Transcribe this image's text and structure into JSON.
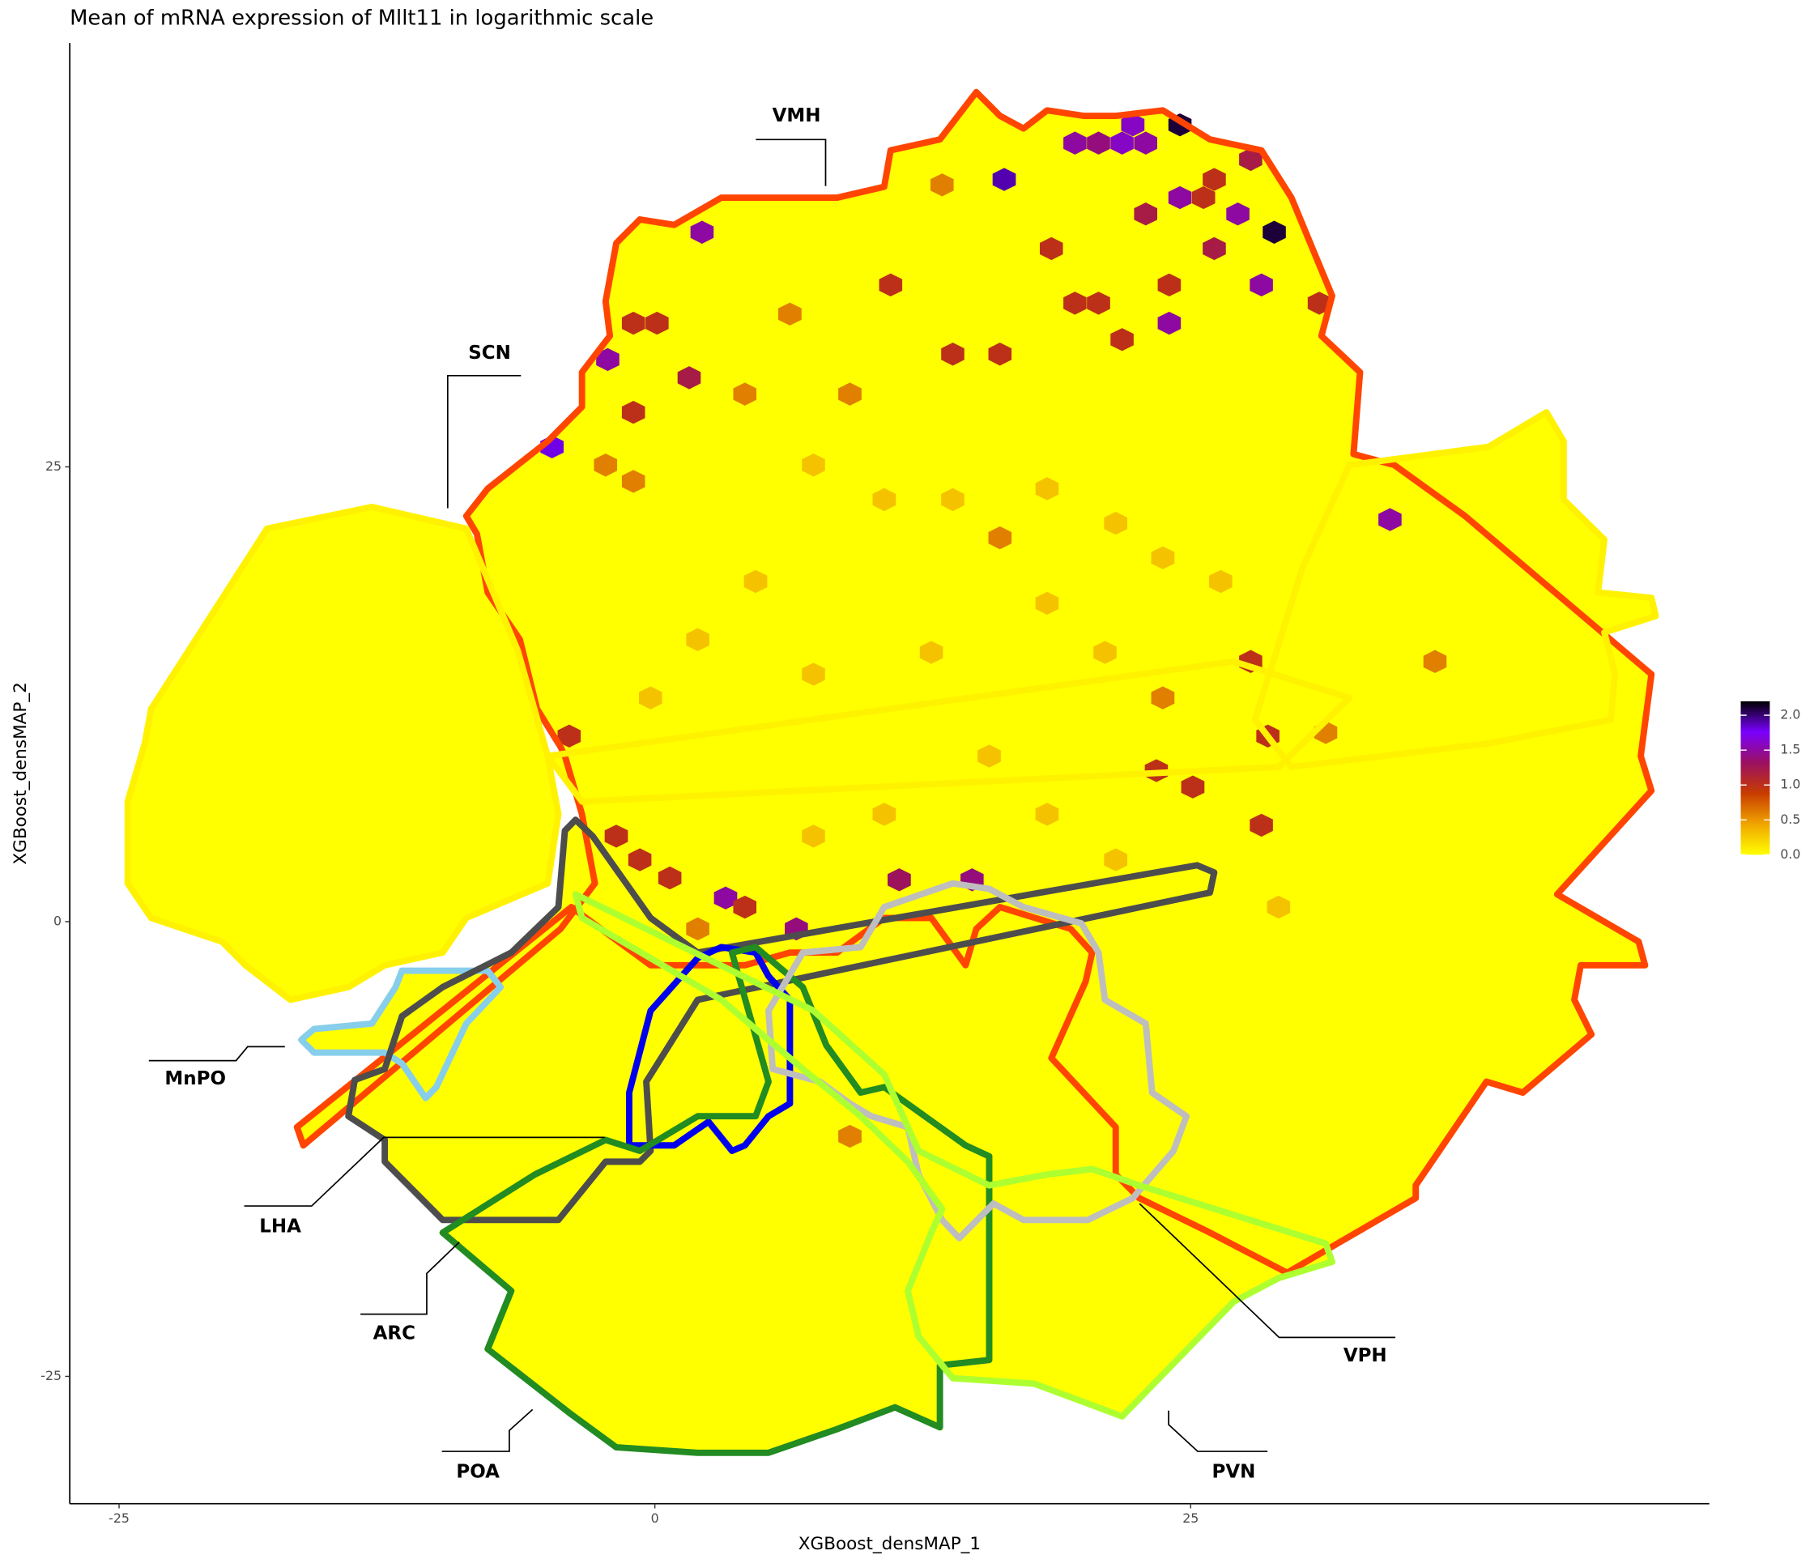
{
  "chart_data": {
    "type": "hexbin",
    "title": "Mean of mRNA expression of Mllt11 in logarithmic scale",
    "x_label": "XGBoost_densMAP_1",
    "y_label": "XGBoost_densMAP_2",
    "xlim": [
      -27.3,
      49.2
    ],
    "ylim": [
      -32.0,
      48.3
    ],
    "xticks": [
      -25,
      0,
      25
    ],
    "yticks": [
      -25,
      0,
      25
    ],
    "colorbar": {
      "lim": [
        0,
        2.2
      ],
      "ticks": [
        {
          "value": 0,
          "label": "0.0"
        },
        {
          "value": 0.5,
          "label": "0.5"
        },
        {
          "value": 1,
          "label": "1.0"
        },
        {
          "value": 1.5,
          "label": "1.5"
        },
        {
          "value": 2,
          "label": "2.0"
        }
      ],
      "colors": [
        "#FFFF00",
        "#F0A500",
        "#C83C00",
        "#9B1060",
        "#7A00FF",
        "#000000"
      ]
    },
    "hexes": {
      "x": [
        24.5,
        28.9,
        16.3,
        -4.8,
        22.3,
        19.6,
        20.7,
        21.8,
        22.9,
        2.2,
        -2.2,
        24.5,
        27.2,
        28.3,
        24.0,
        34.3,
        3.3,
        6.6,
        14.8,
        11.4,
        1.6,
        22.9,
        26.1,
        27.8,
        31.0,
        -1.0,
        0.1,
        -1.0,
        11.0,
        19.6,
        20.7,
        21.8,
        25.6,
        26.1,
        24.0,
        18.5,
        13.9,
        16.1,
        -1.8,
        28.6,
        23.4,
        25.1,
        27.8,
        28.3,
        -0.7,
        0.7,
        4.2,
        -4.0,
        -2.3,
        -1.0,
        16.1,
        36.4,
        9.1,
        13.4,
        6.3,
        9.1,
        4.2,
        31.3,
        2.0,
        23.7,
        7.4,
        10.7,
        13.9,
        18.3,
        21.5,
        23.7,
        26.4,
        4.7,
        2.0,
        -0.2,
        7.4,
        12.9,
        18.3,
        21.0,
        15.6,
        10.7,
        7.4,
        18.3,
        21.5,
        29.1
      ],
      "y": [
        43.8,
        37.9,
        40.8,
        26.1,
        43.8,
        42.8,
        42.8,
        42.8,
        42.8,
        37.9,
        30.9,
        39.8,
        38.9,
        35.0,
        32.9,
        22.1,
        1.3,
        -0.4,
        2.3,
        2.3,
        29.9,
        38.9,
        37.0,
        41.9,
        34.0,
        32.9,
        32.9,
        28.0,
        35.0,
        34.0,
        34.0,
        32.0,
        39.8,
        40.8,
        35.0,
        37.0,
        31.2,
        31.2,
        4.7,
        10.2,
        8.3,
        7.4,
        14.3,
        5.3,
        3.4,
        2.4,
        0.8,
        10.2,
        25.1,
        24.2,
        21.1,
        14.3,
        -11.8,
        40.5,
        33.4,
        29.0,
        29.0,
        10.4,
        -0.4,
        12.3,
        25.1,
        23.2,
        23.2,
        23.8,
        21.9,
        20.0,
        18.7,
        18.7,
        15.5,
        12.3,
        13.6,
        14.8,
        17.5,
        14.8,
        9.1,
        5.9,
        4.7,
        5.9,
        3.4,
        0.8
      ],
      "values": [
        2.1,
        2.1,
        1.9,
        1.8,
        1.6,
        1.5,
        1.4,
        1.6,
        1.5,
        1.5,
        1.5,
        1.5,
        1.5,
        1.5,
        1.5,
        1.5,
        1.5,
        1.4,
        1.4,
        1.3,
        1.2,
        1.2,
        1.2,
        1.2,
        1.0,
        1.0,
        1.0,
        1.0,
        1.0,
        1.0,
        1.0,
        1.0,
        1.0,
        1.0,
        1.0,
        1.0,
        1.0,
        1.0,
        1.0,
        1.0,
        1.0,
        1.0,
        1.0,
        1.0,
        1.0,
        1.0,
        1.0,
        1.0,
        0.6,
        0.6,
        0.6,
        0.6,
        0.6,
        0.6,
        0.6,
        0.6,
        0.6,
        0.6,
        0.6,
        0.6,
        0.3,
        0.3,
        0.3,
        0.3,
        0.3,
        0.3,
        0.3,
        0.3,
        0.3,
        0.3,
        0.3,
        0.3,
        0.3,
        0.3,
        0.3,
        0.3,
        0.3,
        0.3,
        0.3,
        0.3
      ]
    },
    "regions": [
      {
        "name": "VMH",
        "color": "#FF4500",
        "paths": [
          {
            "x": [
              -8.8,
              -7.8,
              -5.0,
              -3.4,
              -3.4,
              -2.1,
              -2.3,
              -1.8,
              -0.7,
              0.9,
              3.1,
              8.5,
              10.7,
              11.0,
              13.3,
              15.0,
              16.1,
              17.2,
              18.3,
              20.0,
              21.5,
              23.7,
              25.9,
              28.3,
              29.7,
              31.6,
              31.1,
              32.9,
              32.6,
              34.5,
              37.8,
              46.5,
              46.0,
              46.5,
              42.1,
              45.9,
              46.2,
              43.2,
              42.9,
              43.7,
              40.5,
              38.8,
              35.5,
              35.5,
              29.5,
              25.9,
              22.6,
              21.5,
              21.5,
              18.5,
              20.1,
              20.4,
              19.4,
              16.1,
              15.0,
              14.5,
              12.9,
              10.7,
              8.5,
              6.3,
              4.2,
              2.0,
              -0.2,
              -3.9,
              -16.7,
              -16.4,
              -4.4,
              -2.8,
              -3.4,
              -4.2,
              -4.4,
              -5.5,
              -6.3,
              -7.8,
              -8.3
            ],
            "y": [
              22.3,
              23.8,
              26.4,
              28.3,
              30.2,
              32.2,
              34.1,
              37.3,
              38.6,
              38.3,
              39.8,
              39.8,
              40.4,
              42.4,
              43.0,
              45.6,
              44.3,
              43.6,
              44.6,
              44.3,
              44.3,
              44.6,
              43.0,
              42.4,
              39.8,
              34.4,
              32.2,
              30.2,
              25.7,
              25.1,
              22.3,
              13.6,
              9.1,
              7.2,
              1.5,
              -1.1,
              -2.4,
              -2.4,
              -4.3,
              -6.2,
              -9.4,
              -8.8,
              -14.5,
              -15.2,
              -19.3,
              -17.1,
              -15.2,
              -13.9,
              -11.3,
              -7.5,
              -3.3,
              -1.7,
              -0.4,
              0.8,
              -0.4,
              -2.4,
              0.2,
              0.2,
              -1.7,
              -1.7,
              -2.4,
              -2.4,
              -2.4,
              0.8,
              -11.3,
              -12.3,
              -0.4,
              2.1,
              5.9,
              9.1,
              9.6,
              11.7,
              15.5,
              18.1,
              21.3
            ]
          }
        ]
      },
      {
        "name": "SCN",
        "color": "#FFF200",
        "paths": [
          {
            "x": [
              -18.1,
              -13.2,
              -8.8,
              -6.4,
              -5.0,
              -4.5,
              -5.0,
              -8.8,
              -9.9,
              -12.6,
              -14.3,
              -17.0,
              -19.1,
              -20.2,
              -23.5,
              -24.6,
              -24.6,
              -23.8,
              -23.5
            ],
            "y": [
              21.6,
              22.8,
              21.6,
              14.9,
              9.1,
              5.9,
              2.1,
              0.2,
              -1.7,
              -2.4,
              -3.6,
              -4.3,
              -2.4,
              -1.1,
              0.2,
              2.1,
              6.6,
              9.8,
              11.7
            ]
          },
          {
            "x": [
              32.4,
              38.9,
              41.6,
              42.4,
              42.4,
              44.3,
              44.0,
              46.5,
              46.7,
              44.3,
              44.8,
              44.6,
              38.9,
              29.7,
              28.0,
              30.2
            ],
            "y": [
              25.1,
              26.1,
              28.0,
              26.4,
              23.2,
              21.0,
              18.1,
              17.8,
              16.8,
              15.9,
              13.6,
              11.1,
              9.8,
              8.5,
              11.1,
              19.4
            ]
          },
          {
            "x": [
              -5.0,
              27.0,
              32.4,
              29.1,
              -3.4
            ],
            "y": [
              9.1,
              14.3,
              12.3,
              8.5,
              6.6
            ]
          }
        ]
      },
      {
        "name": "MnPO",
        "color": "#87CEEB",
        "paths": [
          {
            "x": [
              -11.8,
              -7.8,
              -7.2,
              -8.8,
              -10.2,
              -10.7,
              -11.8,
              -12.6,
              -15.9,
              -16.5,
              -15.9,
              -13.2,
              -12.1
            ],
            "y": [
              -2.7,
              -2.7,
              -3.6,
              -5.6,
              -9.1,
              -9.7,
              -7.8,
              -7.2,
              -7.2,
              -6.5,
              -5.9,
              -5.6,
              -3.6
            ]
          }
        ]
      },
      {
        "name": "LHA",
        "color": "#4D4D4D",
        "paths": [
          {
            "x": [
              -4.2,
              -4.5,
              -6.7,
              -9.9,
              -11.8,
              -12.6,
              -14.0,
              -14.3,
              -12.6,
              -12.6,
              -9.9,
              -4.5,
              -2.3,
              -0.7,
              -0.2,
              -0.4,
              2.0,
              25.9,
              26.1,
              25.3,
              2.0,
              -0.2,
              -2.9,
              -3.7
            ],
            "y": [
              5.0,
              0.8,
              -1.7,
              -3.6,
              -5.2,
              -8.1,
              -8.7,
              -10.7,
              -12.0,
              -13.2,
              -16.4,
              -16.4,
              -13.2,
              -13.2,
              -12.6,
              -8.8,
              -4.3,
              1.6,
              2.7,
              3.1,
              -1.7,
              0.2,
              4.7,
              5.6
            ]
          }
        ]
      },
      {
        "name": "ARC",
        "color": "#0000EE",
        "paths": [
          {
            "x": [
              2.0,
              -0.2,
              -1.2,
              -1.2,
              0.9,
              2.5,
              3.6,
              4.2,
              5.3,
              6.3,
              6.3,
              5.3,
              4.7,
              3.1
            ],
            "y": [
              -2.0,
              -4.9,
              -9.4,
              -12.3,
              -12.3,
              -11.0,
              -12.6,
              -12.3,
              -10.7,
              -10.0,
              -4.3,
              -3.0,
              -1.7,
              -1.4
            ]
          }
        ]
      },
      {
        "name": "POA",
        "color": "#228B22",
        "paths": [
          {
            "x": [
              3.6,
              5.3,
              4.7,
              2.0,
              -0.7,
              -2.3,
              -5.6,
              -9.9,
              -6.7,
              -7.8,
              -4.0,
              -1.8,
              2.0,
              5.3,
              8.5,
              11.2,
              13.3,
              13.3,
              15.6,
              15.6,
              14.5,
              10.7,
              9.6,
              8.0,
              6.9,
              4.7
            ],
            "y": [
              -1.7,
              -8.8,
              -10.7,
              -10.7,
              -12.6,
              -12.0,
              -13.9,
              -17.1,
              -20.3,
              -23.5,
              -27.0,
              -28.9,
              -29.2,
              -29.2,
              -27.9,
              -26.7,
              -27.8,
              -24.4,
              -24.1,
              -12.9,
              -12.3,
              -9.1,
              -9.4,
              -6.8,
              -3.6,
              -1.4
            ]
          }
        ]
      },
      {
        "name": "VPH",
        "color": "#BEBEBE",
        "paths": [
          {
            "x": [
              10.7,
              13.9,
              15.6,
              17.2,
              19.9,
              20.7,
              21.0,
              22.9,
              23.2,
              24.8,
              24.2,
              22.3,
              20.2,
              17.2,
              15.8,
              14.2,
              13.4,
              12.3,
              11.8,
              10.1,
              9.1,
              7.7,
              5.5,
              5.3,
              6.9,
              9.6
            ],
            "y": [
              0.8,
              2.1,
              1.8,
              0.8,
              -0.1,
              -1.7,
              -4.3,
              -5.6,
              -9.4,
              -10.7,
              -12.6,
              -15.2,
              -16.4,
              -16.4,
              -15.5,
              -17.4,
              -16.4,
              -13.9,
              -11.3,
              -10.7,
              -10.0,
              -8.8,
              -8.1,
              -4.9,
              -1.7,
              -1.4
            ]
          }
        ]
      },
      {
        "name": "PVN",
        "color": "#ADFF2F",
        "paths": [
          {
            "x": [
              -3.7,
              7.4,
              10.7,
              12.3,
              15.6,
              18.3,
              20.4,
              22.6,
              31.3,
              31.6,
              29.1,
              27.0,
              21.8,
              17.7,
              13.9,
              12.3,
              11.8,
              12.9,
              13.4,
              11.8,
              9.6,
              6.9,
              3.1,
              -3.4
            ],
            "y": [
              1.5,
              -4.9,
              -8.4,
              -12.6,
              -14.5,
              -13.9,
              -13.6,
              -14.5,
              -17.7,
              -18.7,
              -19.6,
              -20.9,
              -27.2,
              -25.4,
              -25.1,
              -22.8,
              -20.3,
              -17.1,
              -15.8,
              -13.2,
              -10.7,
              -8.1,
              -4.3,
              0.2
            ]
          }
        ]
      }
    ]
  }
}
